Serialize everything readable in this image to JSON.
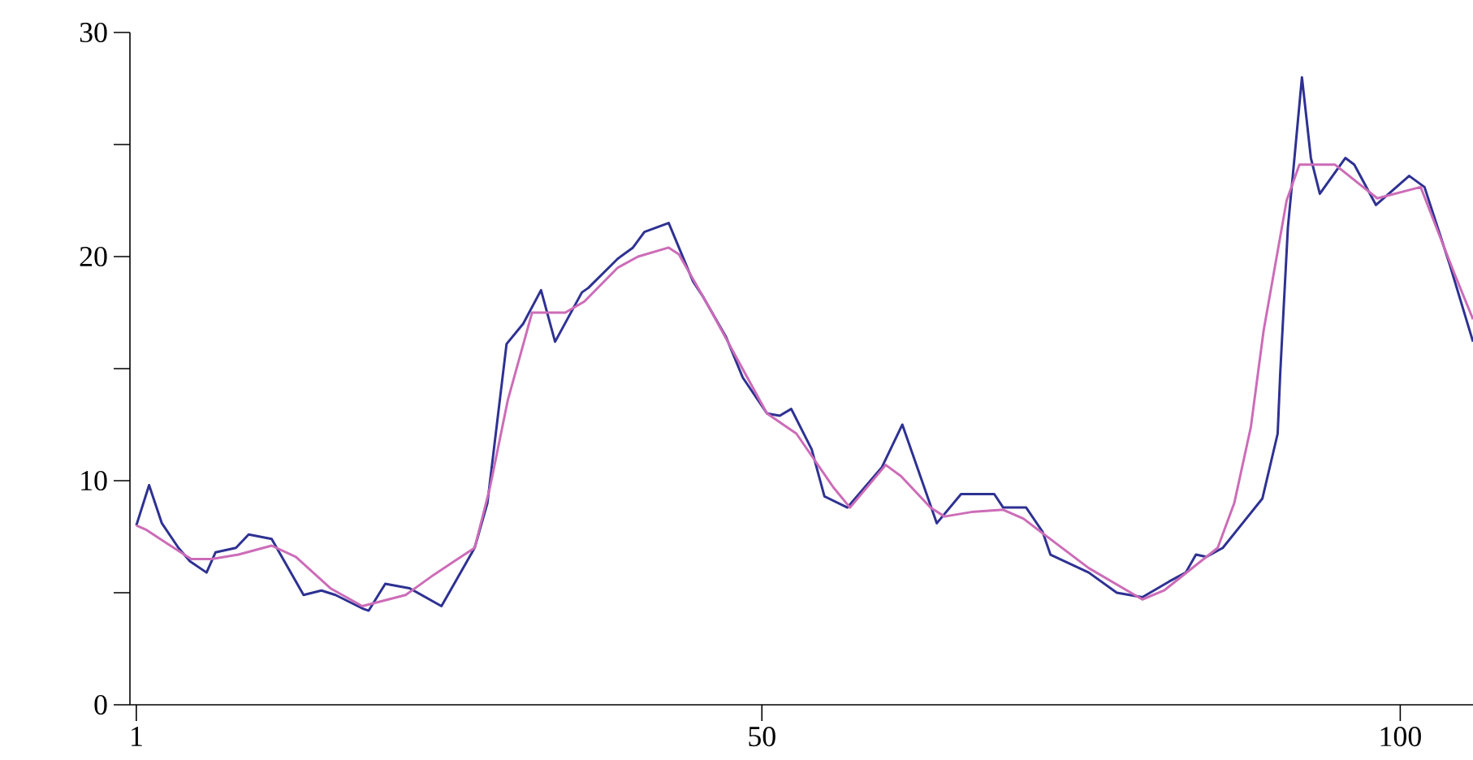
{
  "chart_data": {
    "type": "line",
    "xlim": [
      0.5,
      105.7
    ],
    "ylim": [
      0,
      30
    ],
    "xticks": [
      1,
      50,
      100
    ],
    "yticks": [
      0,
      {
        "value": 5,
        "label": null
      },
      10,
      {
        "value": 15,
        "label": null
      },
      20,
      {
        "value": 25,
        "label": null
      },
      30
    ],
    "series": [
      {
        "color": "#2e3192",
        "x": [
          1,
          2,
          3,
          4.3,
          5.2,
          6.5,
          7.2,
          8.8,
          9.8,
          11.6,
          14.1,
          15.5,
          16.6,
          18.7,
          19.2,
          20.5,
          22.4,
          24.9,
          27.5,
          28.5,
          30,
          31.3,
          32.7,
          33.8,
          35.9,
          36.4,
          38.7,
          39.9,
          40.8,
          42.7,
          44.6,
          45.4,
          47.2,
          48.5,
          50.4,
          51.4,
          52.3,
          53.9,
          54.9,
          56.7,
          59.4,
          61,
          63.7,
          65.6,
          68.2,
          68.9,
          70.7,
          72,
          72.6,
          75.6,
          77.8,
          79.8,
          81.9,
          83.2,
          84,
          84.8,
          86.1,
          89.2,
          90.4,
          90.6,
          91.2,
          91.6,
          92.3,
          93,
          93.7,
          95.7,
          96.4,
          98.1,
          100.7,
          101.9,
          103.9,
          105.7
        ],
        "values": [
          8.0,
          9.8,
          8.1,
          7.0,
          6.4,
          5.9,
          6.8,
          7.0,
          7.6,
          7.4,
          4.9,
          5.1,
          4.9,
          4.3,
          4.2,
          5.4,
          5.2,
          4.4,
          7.0,
          9.0,
          16.1,
          17.0,
          18.5,
          16.2,
          18.4,
          18.6,
          19.9,
          20.4,
          21.1,
          21.5,
          18.9,
          18.2,
          16.4,
          14.6,
          13.0,
          12.9,
          13.2,
          11.4,
          9.3,
          8.8,
          10.6,
          12.5,
          8.1,
          9.4,
          9.4,
          8.8,
          8.8,
          7.7,
          6.7,
          5.9,
          5.0,
          4.8,
          5.5,
          5.9,
          6.7,
          6.6,
          7.0,
          9.2,
          12.1,
          14.8,
          21.3,
          23.7,
          28.0,
          24.4,
          22.8,
          24.4,
          24.1,
          22.3,
          23.6,
          23.1,
          19.6,
          16.2
        ]
      },
      {
        "color": "#cc6cb8",
        "x": [
          1,
          1.8,
          3.4,
          5.3,
          6.9,
          9,
          11.6,
          13.5,
          16.2,
          18.7,
          22.1,
          24.3,
          25.9,
          27.5,
          28.7,
          30.1,
          32,
          34.6,
          36.1,
          38.7,
          40.3,
          42.7,
          43.5,
          45.9,
          48,
          50.4,
          52.7,
          55.6,
          56.9,
          59.7,
          60.9,
          63.2,
          64.3,
          66.4,
          68.9,
          70.5,
          75.6,
          79.8,
          81.5,
          85.7,
          87,
          88.3,
          89.3,
          91.1,
          92.1,
          94.9,
          98.2,
          101.6,
          104.2,
          105.7
        ],
        "values": [
          8.0,
          7.8,
          7.2,
          6.5,
          6.5,
          6.7,
          7.1,
          6.6,
          5.2,
          4.4,
          4.9,
          5.8,
          6.4,
          7.0,
          9.7,
          13.6,
          17.5,
          17.5,
          18.0,
          19.5,
          20.0,
          20.4,
          20.1,
          17.7,
          15.5,
          13.0,
          12.1,
          9.7,
          8.8,
          10.7,
          10.2,
          8.8,
          8.4,
          8.6,
          8.7,
          8.3,
          6.1,
          4.7,
          5.1,
          7.0,
          9.0,
          12.4,
          16.7,
          22.5,
          24.1,
          24.1,
          22.6,
          23.1,
          19.3,
          17.2
        ]
      }
    ]
  }
}
